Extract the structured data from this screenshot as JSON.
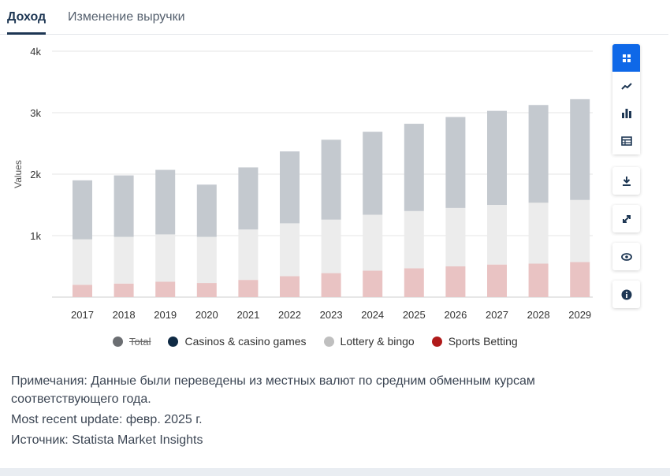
{
  "tabs": [
    {
      "label": "Доход",
      "active": true
    },
    {
      "label": "Изменение выручки",
      "active": false
    }
  ],
  "toolbar": {
    "icons": [
      "grid-view-icon",
      "line-chart-icon",
      "bar-chart-icon",
      "table-icon",
      "download-icon",
      "expand-icon",
      "eye-icon",
      "info-icon"
    ],
    "active_color": "#0e68e8"
  },
  "legend": [
    {
      "label": "Total",
      "color": "#6b6e72",
      "disabled": true
    },
    {
      "label": "Casinos & casino games",
      "color": "#0f2a44"
    },
    {
      "label": "Lottery & bingo",
      "color": "#bfbfbf"
    },
    {
      "label": "Sports Betting",
      "color": "#b01a1a"
    }
  ],
  "chart_data": {
    "type": "bar",
    "stacked": true,
    "ylabel": "Values",
    "yticks": [
      "1k",
      "2k",
      "3k",
      "4k"
    ],
    "ylim": [
      0,
      4000
    ],
    "categories": [
      "2017",
      "2018",
      "2019",
      "2020",
      "2021",
      "2022",
      "2023",
      "2024",
      "2025",
      "2026",
      "2027",
      "2028",
      "2029"
    ],
    "series": [
      {
        "name": "Sports Betting",
        "color": "#e9c3c3",
        "values": [
          200,
          220,
          250,
          230,
          280,
          340,
          390,
          430,
          470,
          500,
          530,
          545,
          570
        ]
      },
      {
        "name": "Lottery & bingo",
        "color": "#ececec",
        "values": [
          740,
          760,
          770,
          750,
          820,
          860,
          870,
          910,
          930,
          950,
          970,
          990,
          1010
        ]
      },
      {
        "name": "Casinos & casino games",
        "color": "#c4c9cf",
        "values": [
          960,
          1000,
          1050,
          850,
          1010,
          1170,
          1300,
          1350,
          1420,
          1480,
          1530,
          1590,
          1640
        ]
      }
    ],
    "grid": true,
    "legend_position": "bottom"
  },
  "notes": {
    "remarks": "Примечания: Данные были переведены из местных валют по средним обменным курсам соответствующего года.",
    "update": "Most recent update: февр. 2025 г.",
    "source": "Источник: Statista Market Insights"
  }
}
